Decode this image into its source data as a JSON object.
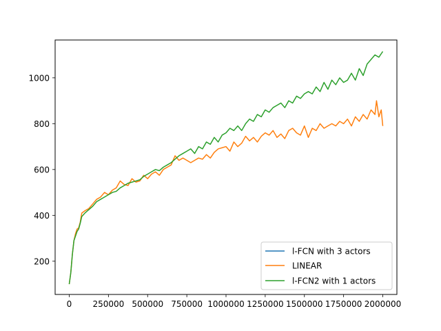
{
  "chart_data": {
    "type": "line",
    "title": "",
    "xlabel": "",
    "ylabel": "",
    "xlim": [
      -90000,
      2090000
    ],
    "ylim": [
      55,
      1165
    ],
    "xticks": [
      0,
      250000,
      500000,
      750000,
      1000000,
      1250000,
      1500000,
      1750000,
      2000000
    ],
    "xtick_labels": [
      "0",
      "250000",
      "500000",
      "750000",
      "1000000",
      "1250000",
      "1500000",
      "1750000",
      "2000000"
    ],
    "yticks": [
      200,
      400,
      600,
      800,
      1000
    ],
    "ytick_labels": [
      "200",
      "400",
      "600",
      "800",
      "1000"
    ],
    "grid": false,
    "legend_position": "lower right",
    "series": [
      {
        "name": "l-FCN with 3 actors",
        "color": "#1f77b4",
        "x": [],
        "y": []
      },
      {
        "name": "LINEAR",
        "color": "#ff7f0e",
        "x": [
          0,
          10000,
          20000,
          30000,
          40000,
          50000,
          60000,
          70000,
          80000,
          100000,
          125000,
          150000,
          175000,
          200000,
          225000,
          250000,
          275000,
          300000,
          325000,
          350000,
          375000,
          400000,
          425000,
          450000,
          475000,
          500000,
          525000,
          550000,
          575000,
          600000,
          625000,
          650000,
          675000,
          700000,
          725000,
          750000,
          775000,
          800000,
          825000,
          850000,
          875000,
          900000,
          925000,
          950000,
          975000,
          1000000,
          1025000,
          1050000,
          1075000,
          1100000,
          1125000,
          1150000,
          1175000,
          1200000,
          1225000,
          1250000,
          1275000,
          1300000,
          1325000,
          1350000,
          1375000,
          1400000,
          1425000,
          1450000,
          1475000,
          1500000,
          1525000,
          1550000,
          1575000,
          1600000,
          1625000,
          1650000,
          1675000,
          1700000,
          1725000,
          1750000,
          1775000,
          1800000,
          1825000,
          1850000,
          1875000,
          1900000,
          1925000,
          1950000,
          1960000,
          1975000,
          1990000,
          2000000
        ],
        "y": [
          100,
          150,
          230,
          290,
          320,
          340,
          345,
          370,
          410,
          420,
          430,
          450,
          470,
          480,
          500,
          490,
          510,
          520,
          550,
          535,
          530,
          560,
          545,
          550,
          575,
          560,
          580,
          590,
          575,
          600,
          610,
          620,
          660,
          640,
          650,
          640,
          630,
          640,
          650,
          645,
          665,
          650,
          675,
          690,
          695,
          700,
          680,
          720,
          700,
          715,
          745,
          725,
          740,
          720,
          745,
          760,
          750,
          770,
          740,
          755,
          735,
          770,
          780,
          760,
          750,
          790,
          740,
          780,
          770,
          800,
          780,
          790,
          800,
          790,
          810,
          800,
          820,
          790,
          830,
          810,
          840,
          820,
          860,
          840,
          900,
          830,
          860,
          790
        ]
      },
      {
        "name": "l-FCN2 with 1 actors",
        "color": "#2ca02c",
        "x": [
          0,
          10000,
          20000,
          30000,
          40000,
          50000,
          60000,
          70000,
          80000,
          100000,
          125000,
          150000,
          175000,
          200000,
          225000,
          250000,
          275000,
          300000,
          325000,
          350000,
          375000,
          400000,
          425000,
          450000,
          475000,
          500000,
          525000,
          550000,
          575000,
          600000,
          625000,
          650000,
          675000,
          700000,
          725000,
          750000,
          775000,
          800000,
          825000,
          850000,
          875000,
          900000,
          925000,
          950000,
          975000,
          1000000,
          1025000,
          1050000,
          1075000,
          1100000,
          1125000,
          1150000,
          1175000,
          1200000,
          1225000,
          1250000,
          1275000,
          1300000,
          1325000,
          1350000,
          1375000,
          1400000,
          1425000,
          1450000,
          1475000,
          1500000,
          1525000,
          1550000,
          1575000,
          1600000,
          1625000,
          1650000,
          1675000,
          1700000,
          1725000,
          1750000,
          1775000,
          1800000,
          1825000,
          1850000,
          1875000,
          1900000,
          1925000,
          1950000,
          1975000,
          2000000
        ],
        "y": [
          100,
          150,
          230,
          290,
          310,
          330,
          340,
          365,
          395,
          410,
          425,
          440,
          460,
          470,
          480,
          490,
          500,
          505,
          520,
          530,
          540,
          545,
          550,
          555,
          570,
          580,
          590,
          600,
          595,
          610,
          620,
          630,
          645,
          660,
          670,
          680,
          690,
          670,
          700,
          690,
          720,
          710,
          740,
          720,
          750,
          760,
          780,
          770,
          790,
          770,
          800,
          820,
          810,
          840,
          830,
          860,
          850,
          870,
          880,
          890,
          870,
          900,
          890,
          920,
          910,
          930,
          940,
          930,
          960,
          940,
          980,
          950,
          990,
          970,
          1000,
          980,
          990,
          1020,
          990,
          1040,
          1010,
          1060,
          1080,
          1100,
          1090,
          1115
        ]
      }
    ]
  }
}
